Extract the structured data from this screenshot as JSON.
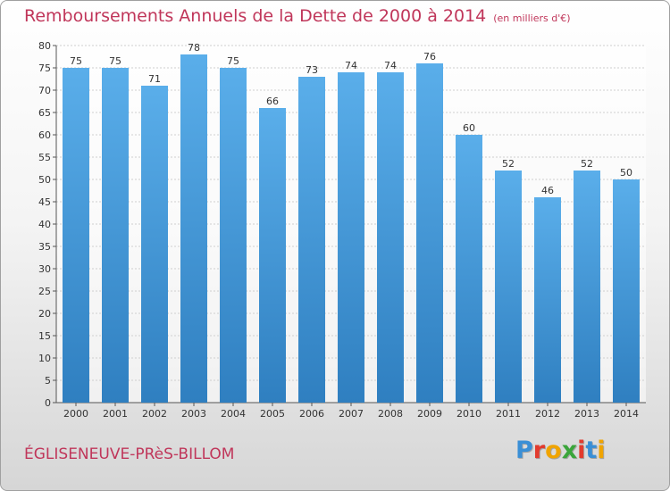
{
  "title": "Remboursements Annuels de la Dette de 2000 à 2014",
  "unit": "(en milliers d'€)",
  "commune": "ÉGLISENEUVE-PRèS-BILLOM",
  "logo": {
    "letters": [
      "P",
      "r",
      "o",
      "x",
      "i",
      "t",
      "i"
    ],
    "colors": [
      "#3a8fd6",
      "#e23b2e",
      "#f0a400",
      "#3aa53a",
      "#e23b2e",
      "#3a8fd6",
      "#f0a400"
    ]
  },
  "colors": {
    "bar_top": "#5aaeea",
    "bar_bottom": "#2f7fc0",
    "title": "#c0365a",
    "grid": "#cfcfcf"
  },
  "chart_data": {
    "type": "bar",
    "categories": [
      "2000",
      "2001",
      "2002",
      "2003",
      "2004",
      "2005",
      "2006",
      "2007",
      "2008",
      "2009",
      "2010",
      "2011",
      "2012",
      "2013",
      "2014"
    ],
    "values": [
      75,
      75,
      71,
      78,
      75,
      66,
      73,
      74,
      74,
      76,
      60,
      52,
      46,
      52,
      50
    ],
    "yticks": [
      0,
      5,
      10,
      15,
      20,
      25,
      30,
      35,
      40,
      45,
      50,
      55,
      60,
      65,
      70,
      75,
      80
    ],
    "ylim": [
      0,
      80
    ],
    "grid": true,
    "xlabel": "",
    "ylabel": ""
  }
}
